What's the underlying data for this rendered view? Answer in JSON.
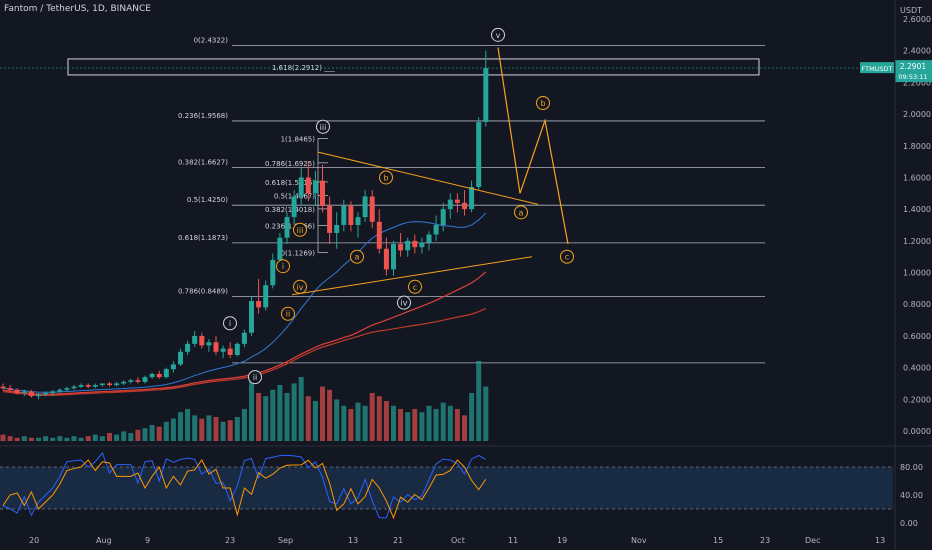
{
  "header": {
    "title": "Fantom / TetherUS, 1D, BINANCE",
    "currency": "USDT"
  },
  "price_tag": {
    "symbol": "FTMUSDT",
    "price": "2.2901",
    "countdown": "09:53:11"
  },
  "colors": {
    "background": "#131722",
    "up": "#26a69a",
    "down": "#ef5350",
    "wave": "#f7a21b",
    "fib_line": "#b2b5be",
    "ma_blue": "#2f7bd4",
    "ma_red": "#e0413a",
    "stoch_k": "#2962ff",
    "stoch_d": "#ff9800"
  },
  "chart_data": {
    "type": "candlestick",
    "yaxis": {
      "ticks": [
        "2.6000",
        "2.4000",
        "2.2000",
        "2.0000",
        "1.8000",
        "1.6000",
        "1.4000",
        "1.2000",
        "1.0000",
        "0.8000",
        "0.6000",
        "0.4000",
        "0.2000",
        "0.0000"
      ],
      "ylim": [
        -0.05,
        2.65
      ]
    },
    "xaxis": {
      "ticks": [
        "20",
        "Aug",
        "9",
        "23",
        "Sep",
        "13",
        "21",
        "Oct",
        "11",
        "19",
        "Nov",
        "15",
        "23",
        "Dec",
        "13"
      ]
    },
    "fib_levels": [
      {
        "label": "0(2.4322)",
        "value": 2.4322
      },
      {
        "label": "0.236(1.9568)",
        "value": 1.9568
      },
      {
        "label": "0.382(1.6627)",
        "value": 1.6627
      },
      {
        "label": "0.5(1.4250)",
        "value": 1.425
      },
      {
        "label": "0.618(1.1873)",
        "value": 1.1873
      },
      {
        "label": "0.786(0.8489)",
        "value": 0.8489
      },
      {
        "label": "",
        "value": 0.43
      }
    ],
    "inner_fib_levels": [
      {
        "label": "1(1.8465)",
        "value": 1.8465
      },
      {
        "label": "0.786(1.6925)",
        "value": 1.6925
      },
      {
        "label": "0.618(1.5716)",
        "value": 1.5716
      },
      {
        "label": "0.5(1.4867)",
        "value": 1.4867
      },
      {
        "label": "0.382(1.4018)",
        "value": 1.4018
      },
      {
        "label": "0.236(1.2966)",
        "value": 1.2966
      },
      {
        "label": "0(1.1269)",
        "value": 1.1269
      }
    ],
    "extension_box": {
      "label": "1.618(2.2912)",
      "value": 2.2912
    },
    "wave_labels_white": [
      "i",
      "ii",
      "iii",
      "iv",
      "v"
    ],
    "wave_labels_orange": [
      "i",
      "ii",
      "iii",
      "iv",
      "a",
      "b",
      "c",
      "a",
      "b",
      "c"
    ],
    "candles": [
      {
        "o": 0.28,
        "h": 0.3,
        "l": 0.26,
        "c": 0.27
      },
      {
        "o": 0.27,
        "h": 0.29,
        "l": 0.25,
        "c": 0.26
      },
      {
        "o": 0.26,
        "h": 0.27,
        "l": 0.23,
        "c": 0.24
      },
      {
        "o": 0.24,
        "h": 0.26,
        "l": 0.22,
        "c": 0.25
      },
      {
        "o": 0.25,
        "h": 0.26,
        "l": 0.21,
        "c": 0.22
      },
      {
        "o": 0.22,
        "h": 0.24,
        "l": 0.2,
        "c": 0.23
      },
      {
        "o": 0.23,
        "h": 0.25,
        "l": 0.22,
        "c": 0.24
      },
      {
        "o": 0.24,
        "h": 0.26,
        "l": 0.22,
        "c": 0.25
      },
      {
        "o": 0.25,
        "h": 0.27,
        "l": 0.24,
        "c": 0.26
      },
      {
        "o": 0.26,
        "h": 0.28,
        "l": 0.25,
        "c": 0.27
      },
      {
        "o": 0.27,
        "h": 0.29,
        "l": 0.26,
        "c": 0.28
      },
      {
        "o": 0.28,
        "h": 0.3,
        "l": 0.27,
        "c": 0.29
      },
      {
        "o": 0.29,
        "h": 0.3,
        "l": 0.27,
        "c": 0.28
      },
      {
        "o": 0.28,
        "h": 0.3,
        "l": 0.27,
        "c": 0.29
      },
      {
        "o": 0.29,
        "h": 0.3,
        "l": 0.28,
        "c": 0.3
      },
      {
        "o": 0.3,
        "h": 0.31,
        "l": 0.28,
        "c": 0.29
      },
      {
        "o": 0.29,
        "h": 0.31,
        "l": 0.28,
        "c": 0.3
      },
      {
        "o": 0.3,
        "h": 0.32,
        "l": 0.29,
        "c": 0.31
      },
      {
        "o": 0.31,
        "h": 0.33,
        "l": 0.3,
        "c": 0.32
      },
      {
        "o": 0.32,
        "h": 0.34,
        "l": 0.3,
        "c": 0.31
      },
      {
        "o": 0.31,
        "h": 0.35,
        "l": 0.3,
        "c": 0.34
      },
      {
        "o": 0.34,
        "h": 0.37,
        "l": 0.33,
        "c": 0.36
      },
      {
        "o": 0.36,
        "h": 0.38,
        "l": 0.33,
        "c": 0.34
      },
      {
        "o": 0.34,
        "h": 0.4,
        "l": 0.33,
        "c": 0.39
      },
      {
        "o": 0.39,
        "h": 0.44,
        "l": 0.37,
        "c": 0.42
      },
      {
        "o": 0.42,
        "h": 0.52,
        "l": 0.41,
        "c": 0.5
      },
      {
        "o": 0.5,
        "h": 0.57,
        "l": 0.48,
        "c": 0.55
      },
      {
        "o": 0.55,
        "h": 0.63,
        "l": 0.53,
        "c": 0.6
      },
      {
        "o": 0.6,
        "h": 0.62,
        "l": 0.52,
        "c": 0.54
      },
      {
        "o": 0.54,
        "h": 0.58,
        "l": 0.5,
        "c": 0.56
      },
      {
        "o": 0.56,
        "h": 0.6,
        "l": 0.48,
        "c": 0.5
      },
      {
        "o": 0.5,
        "h": 0.54,
        "l": 0.46,
        "c": 0.52
      },
      {
        "o": 0.52,
        "h": 0.56,
        "l": 0.46,
        "c": 0.48
      },
      {
        "o": 0.48,
        "h": 0.56,
        "l": 0.47,
        "c": 0.55
      },
      {
        "o": 0.55,
        "h": 0.64,
        "l": 0.53,
        "c": 0.62
      },
      {
        "o": 0.62,
        "h": 0.85,
        "l": 0.6,
        "c": 0.82
      },
      {
        "o": 0.82,
        "h": 0.96,
        "l": 0.74,
        "c": 0.78
      },
      {
        "o": 0.78,
        "h": 0.95,
        "l": 0.76,
        "c": 0.92
      },
      {
        "o": 0.92,
        "h": 1.12,
        "l": 0.9,
        "c": 1.08
      },
      {
        "o": 1.08,
        "h": 1.25,
        "l": 1.05,
        "c": 1.22
      },
      {
        "o": 1.22,
        "h": 1.38,
        "l": 1.18,
        "c": 1.35
      },
      {
        "o": 1.35,
        "h": 1.52,
        "l": 1.3,
        "c": 1.48
      },
      {
        "o": 1.48,
        "h": 1.66,
        "l": 1.42,
        "c": 1.6
      },
      {
        "o": 1.6,
        "h": 1.7,
        "l": 1.45,
        "c": 1.5
      },
      {
        "o": 1.5,
        "h": 1.64,
        "l": 1.42,
        "c": 1.58
      },
      {
        "o": 1.58,
        "h": 1.68,
        "l": 1.38,
        "c": 1.42
      },
      {
        "o": 1.42,
        "h": 1.48,
        "l": 1.18,
        "c": 1.25
      },
      {
        "o": 1.25,
        "h": 1.38,
        "l": 1.15,
        "c": 1.3
      },
      {
        "o": 1.3,
        "h": 1.46,
        "l": 1.26,
        "c": 1.42
      },
      {
        "o": 1.42,
        "h": 1.45,
        "l": 1.26,
        "c": 1.3
      },
      {
        "o": 1.3,
        "h": 1.38,
        "l": 1.22,
        "c": 1.35
      },
      {
        "o": 1.35,
        "h": 1.52,
        "l": 1.32,
        "c": 1.48
      },
      {
        "o": 1.48,
        "h": 1.52,
        "l": 1.28,
        "c": 1.32
      },
      {
        "o": 1.32,
        "h": 1.4,
        "l": 1.12,
        "c": 1.15
      },
      {
        "o": 1.15,
        "h": 1.22,
        "l": 0.98,
        "c": 1.02
      },
      {
        "o": 1.02,
        "h": 1.2,
        "l": 0.98,
        "c": 1.18
      },
      {
        "o": 1.18,
        "h": 1.25,
        "l": 1.1,
        "c": 1.14
      },
      {
        "o": 1.14,
        "h": 1.22,
        "l": 1.1,
        "c": 1.2
      },
      {
        "o": 1.2,
        "h": 1.24,
        "l": 1.12,
        "c": 1.16
      },
      {
        "o": 1.16,
        "h": 1.22,
        "l": 1.12,
        "c": 1.19
      },
      {
        "o": 1.19,
        "h": 1.26,
        "l": 1.14,
        "c": 1.24
      },
      {
        "o": 1.24,
        "h": 1.36,
        "l": 1.2,
        "c": 1.3
      },
      {
        "o": 1.3,
        "h": 1.44,
        "l": 1.26,
        "c": 1.4
      },
      {
        "o": 1.4,
        "h": 1.5,
        "l": 1.34,
        "c": 1.46
      },
      {
        "o": 1.46,
        "h": 1.5,
        "l": 1.38,
        "c": 1.44
      },
      {
        "o": 1.44,
        "h": 1.52,
        "l": 1.36,
        "c": 1.4
      },
      {
        "o": 1.4,
        "h": 1.58,
        "l": 1.38,
        "c": 1.54
      },
      {
        "o": 1.54,
        "h": 1.98,
        "l": 1.52,
        "c": 1.95
      },
      {
        "o": 1.95,
        "h": 2.4,
        "l": 1.92,
        "c": 2.29
      }
    ],
    "volumes": [
      0.04,
      0.03,
      0.02,
      0.03,
      0.02,
      0.02,
      0.03,
      0.02,
      0.03,
      0.02,
      0.03,
      0.02,
      0.03,
      0.04,
      0.03,
      0.05,
      0.04,
      0.06,
      0.05,
      0.07,
      0.08,
      0.1,
      0.09,
      0.12,
      0.14,
      0.18,
      0.2,
      0.16,
      0.14,
      0.16,
      0.15,
      0.12,
      0.13,
      0.15,
      0.2,
      0.42,
      0.3,
      0.28,
      0.32,
      0.35,
      0.3,
      0.36,
      0.4,
      0.28,
      0.25,
      0.34,
      0.32,
      0.26,
      0.22,
      0.2,
      0.24,
      0.22,
      0.3,
      0.28,
      0.25,
      0.22,
      0.2,
      0.18,
      0.2,
      0.18,
      0.22,
      0.2,
      0.24,
      0.22,
      0.2,
      0.16,
      0.3,
      0.5,
      0.34
    ],
    "stochastic": {
      "levels": [
        "80.00",
        "40.00",
        "0.00"
      ]
    }
  }
}
